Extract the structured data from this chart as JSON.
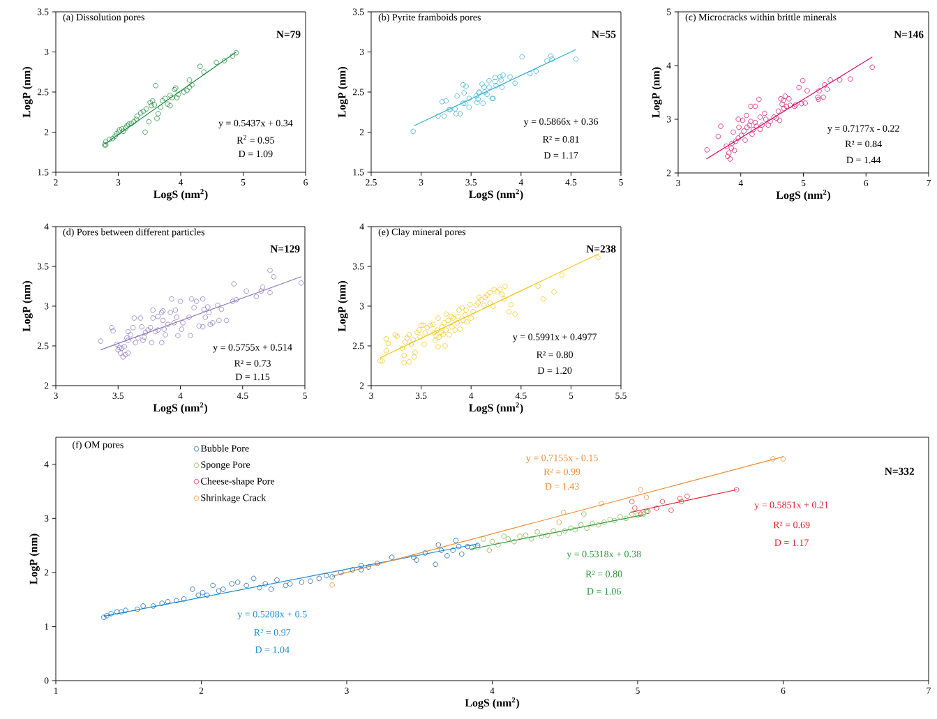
{
  "chart_data": [
    {
      "type": "scatter",
      "title": "(a) Dissolution pores",
      "xlabel": "LogS (nm$^{2}$)",
      "ylabel": "LogP (nm)",
      "marker": "circle",
      "xlim": [
        2,
        6
      ],
      "ylim": [
        1.5,
        3.5
      ],
      "xticks": [
        2,
        3,
        4,
        5,
        6
      ],
      "yticks": [
        1.5,
        2,
        2.5,
        3,
        3.5
      ],
      "series": [
        {
          "color": "#1a8a3c",
          "x": [
            2.78,
            2.8,
            2.8,
            2.86,
            2.91,
            2.95,
            2.97,
            3.01,
            3.02,
            3.06,
            3.08,
            3.12,
            3.14,
            3.17,
            3.21,
            3.25,
            3.29,
            3.3,
            3.36,
            3.4,
            3.43,
            3.49,
            3.45,
            3.53,
            3.51,
            3.55,
            3.58,
            3.6,
            3.62,
            3.64,
            3.68,
            3.71,
            3.75,
            3.79,
            3.83,
            3.83,
            3.86,
            3.9,
            3.92,
            3.94,
            3.96,
            4.05,
            4.1,
            4.14,
            4.14,
            4.18,
            4.31,
            4.37,
            4.57,
            4.7,
            4.83,
            4.89
          ],
          "values": [
            1.84,
            1.84,
            1.88,
            1.91,
            1.92,
            1.95,
            1.98,
            2.0,
            2.03,
            2.04,
            2.01,
            2.05,
            2.08,
            2.1,
            2.11,
            2.13,
            2.16,
            2.2,
            2.24,
            2.26,
            2.0,
            2.13,
            2.29,
            2.33,
            2.37,
            2.39,
            2.34,
            2.58,
            2.17,
            2.23,
            2.31,
            2.39,
            2.42,
            2.35,
            2.46,
            2.33,
            2.43,
            2.53,
            2.55,
            2.43,
            2.47,
            2.5,
            2.52,
            2.65,
            2.56,
            2.59,
            2.82,
            2.75,
            2.87,
            2.89,
            2.95,
            2.99
          ]
        },
        {
          "type": "line",
          "marker": "none",
          "color": "#1a8a3c",
          "x": [
            2.78,
            4.89
          ],
          "values": [
            1.85,
            3.0
          ]
        }
      ],
      "annotations": [
        "y = 0.5437x + 0.34",
        "R$^{2}$ = 0.95",
        "D = 1.09",
        "N=79"
      ]
    },
    {
      "type": "scatter",
      "title": "(b) Pyrite framboids pores",
      "xlabel": "LogS (nm$^{2}$)",
      "ylabel": "LogP (nm)",
      "marker": "circle",
      "xlim": [
        2.5,
        5
      ],
      "ylim": [
        1.5,
        3.5
      ],
      "xticks": [
        2.5,
        3,
        3.5,
        4,
        4.5,
        5
      ],
      "yticks": [
        1.5,
        2,
        2.5,
        3,
        3.5
      ],
      "series": [
        {
          "color": "#3ab0cf",
          "x": [
            2.92,
            3.17,
            3.23,
            3.21,
            3.25,
            3.28,
            3.29,
            3.34,
            3.35,
            3.39,
            3.36,
            3.42,
            3.45,
            3.43,
            3.42,
            3.44,
            3.48,
            3.48,
            3.55,
            3.56,
            3.57,
            3.58,
            3.58,
            3.61,
            3.62,
            3.63,
            3.64,
            3.66,
            3.68,
            3.68,
            3.71,
            3.72,
            3.74,
            3.74,
            3.75,
            3.79,
            3.8,
            3.81,
            3.82,
            3.89,
            3.94,
            4.01,
            4.09,
            4.15,
            4.26,
            4.3,
            4.31,
            4.55
          ],
          "values": [
            2.01,
            2.2,
            2.2,
            2.38,
            2.39,
            2.28,
            2.28,
            2.29,
            2.23,
            2.23,
            2.45,
            2.59,
            2.57,
            2.49,
            2.36,
            2.36,
            2.31,
            2.42,
            2.45,
            2.37,
            2.41,
            2.49,
            2.5,
            2.6,
            2.36,
            2.56,
            2.5,
            2.47,
            2.56,
            2.64,
            2.42,
            2.42,
            2.68,
            2.63,
            2.58,
            2.69,
            2.65,
            2.56,
            2.71,
            2.69,
            2.61,
            2.94,
            2.73,
            2.76,
            2.89,
            2.95,
            2.91,
            2.91
          ]
        },
        {
          "type": "line",
          "marker": "none",
          "color": "#3ab0cf",
          "x": [
            2.93,
            4.55
          ],
          "values": [
            2.08,
            3.03
          ]
        }
      ],
      "annotations": [
        "y = 0.5866x + 0.36",
        "R² = 0.81",
        "D = 1.17",
        "N=55"
      ]
    },
    {
      "type": "scatter",
      "title": "(c) Microcracks within brittle minerals",
      "xlabel": "LogS (nm$^{2}$)",
      "ylabel": "LogP (nm)",
      "marker": "circle",
      "xlim": [
        3,
        7
      ],
      "ylim": [
        2,
        5
      ],
      "xticks": [
        3,
        4,
        5,
        6,
        7
      ],
      "yticks": [
        2,
        3,
        4,
        5
      ],
      "series": [
        {
          "color": "#d6136e",
          "x": [
            3.46,
            3.64,
            3.68,
            3.77,
            3.79,
            3.81,
            3.83,
            3.85,
            3.86,
            3.88,
            3.9,
            3.92,
            3.96,
            3.96,
            3.97,
            4.01,
            4.03,
            4.05,
            4.07,
            4.09,
            4.1,
            4.14,
            4.16,
            4.16,
            4.18,
            4.2,
            4.23,
            4.23,
            4.25,
            4.29,
            4.31,
            4.31,
            4.34,
            4.38,
            4.4,
            4.44,
            4.47,
            4.53,
            4.57,
            4.6,
            4.62,
            4.64,
            4.66,
            4.68,
            4.69,
            4.71,
            4.73,
            4.77,
            4.79,
            4.86,
            4.88,
            4.93,
            4.97,
            4.99,
            5.03,
            5.06,
            5.23,
            5.24,
            5.25,
            5.32,
            5.34,
            5.38,
            5.43,
            5.58,
            5.75,
            6.1
          ],
          "values": [
            2.43,
            2.68,
            2.87,
            2.5,
            2.31,
            2.37,
            2.26,
            2.46,
            2.55,
            2.76,
            2.42,
            2.59,
            2.65,
            3.0,
            2.85,
            2.7,
            2.98,
            2.78,
            2.61,
            3.07,
            2.85,
            2.89,
            3.24,
            2.96,
            2.72,
            2.81,
            3.24,
            2.94,
            2.87,
            3.37,
            3.04,
            2.81,
            2.89,
            3.11,
            3.0,
            2.89,
            2.96,
            3.04,
            3.02,
            3.15,
            2.98,
            3.38,
            3.28,
            3.35,
            3.2,
            3.43,
            3.24,
            3.38,
            3.26,
            3.24,
            3.27,
            3.59,
            3.29,
            3.72,
            3.3,
            3.53,
            3.41,
            3.37,
            3.53,
            3.41,
            3.64,
            3.56,
            3.73,
            3.73,
            3.75,
            3.97
          ]
        },
        {
          "type": "line",
          "marker": "none",
          "color": "#d6136e",
          "x": [
            3.45,
            6.1
          ],
          "values": [
            2.26,
            4.16
          ]
        }
      ],
      "annotations": [
        "y = 0.7177x - 0.22",
        "R² = 0.84",
        "D = 1.44",
        "N=146"
      ]
    },
    {
      "type": "scatter",
      "title": "(d) Pores between different particles",
      "xlabel": "LogS (nm$^{2}$)",
      "ylabel": "LogP (nm)",
      "marker": "circle",
      "xlim": [
        3,
        5
      ],
      "ylim": [
        2,
        4
      ],
      "xticks": [
        3,
        3.5,
        4,
        4.5,
        5
      ],
      "yticks": [
        2,
        2.5,
        3,
        3.5,
        4
      ],
      "series": [
        {
          "color": "#8878bf",
          "x": [
            3.36,
            3.45,
            3.46,
            3.49,
            3.5,
            3.51,
            3.52,
            3.53,
            3.54,
            3.55,
            3.56,
            3.57,
            3.58,
            3.58,
            3.58,
            3.6,
            3.62,
            3.63,
            3.64,
            3.66,
            3.68,
            3.69,
            3.7,
            3.71,
            3.72,
            3.74,
            3.76,
            3.77,
            3.78,
            3.78,
            3.8,
            3.82,
            3.82,
            3.85,
            3.85,
            3.86,
            3.86,
            3.87,
            3.88,
            3.9,
            3.92,
            3.93,
            3.95,
            3.96,
            3.97,
            3.98,
            4.0,
            4.01,
            4.02,
            4.07,
            4.08,
            4.09,
            4.11,
            4.13,
            4.15,
            4.18,
            4.18,
            4.19,
            4.2,
            4.22,
            4.23,
            4.24,
            4.26,
            4.3,
            4.31,
            4.33,
            4.37,
            4.42,
            4.43,
            4.45,
            4.53,
            4.61,
            4.65,
            4.66,
            4.72,
            4.72,
            4.75,
            4.97
          ],
          "values": [
            2.56,
            2.73,
            2.69,
            2.52,
            2.45,
            2.48,
            2.41,
            2.47,
            2.36,
            2.49,
            2.39,
            2.6,
            2.68,
            2.41,
            2.57,
            2.64,
            2.73,
            2.85,
            2.54,
            2.6,
            2.85,
            2.74,
            2.57,
            2.61,
            2.67,
            2.7,
            2.73,
            2.54,
            2.95,
            2.85,
            2.68,
            2.7,
            2.87,
            2.92,
            2.54,
            2.94,
            2.82,
            2.71,
            2.64,
            2.77,
            2.92,
            3.09,
            2.79,
            2.95,
            2.86,
            2.63,
            3.06,
            2.71,
            2.79,
            2.86,
            2.63,
            3.09,
            2.98,
            3.06,
            2.75,
            3.09,
            2.74,
            2.96,
            2.86,
            2.99,
            2.92,
            2.77,
            2.79,
            3.01,
            2.82,
            2.96,
            2.82,
            3.06,
            3.28,
            3.08,
            3.19,
            3.12,
            3.19,
            3.24,
            3.45,
            3.17,
            3.37,
            3.29
          ]
        },
        {
          "type": "line",
          "marker": "none",
          "color": "#8878bf",
          "x": [
            3.36,
            4.97
          ],
          "values": [
            2.45,
            3.37
          ]
        }
      ],
      "annotations": [
        "y = 0.5755x + 0.514",
        "R² = 0.73",
        "D = 1.15",
        "N=129"
      ]
    },
    {
      "type": "scatter",
      "title": "(e) Clay mineral pores",
      "xlabel": "LogS (nm$^{2}$)",
      "ylabel": "LogP (nm)",
      "marker": "circle",
      "xlim": [
        3,
        5.5
      ],
      "ylim": [
        2,
        4
      ],
      "xticks": [
        3,
        3.5,
        4,
        4.5,
        5,
        5.5
      ],
      "yticks": [
        2,
        2.5,
        3,
        3.5,
        4
      ],
      "series": [
        {
          "color": "#f5c518",
          "x": [
            3.09,
            3.11,
            3.15,
            3.17,
            3.15,
            3.24,
            3.26,
            3.31,
            3.33,
            3.33,
            3.34,
            3.36,
            3.38,
            3.38,
            3.4,
            3.42,
            3.43,
            3.44,
            3.46,
            3.48,
            3.49,
            3.5,
            3.52,
            3.53,
            3.54,
            3.56,
            3.59,
            3.62,
            3.63,
            3.64,
            3.65,
            3.66,
            3.67,
            3.67,
            3.68,
            3.7,
            3.71,
            3.72,
            3.73,
            3.74,
            3.75,
            3.75,
            3.77,
            3.78,
            3.8,
            3.81,
            3.82,
            3.84,
            3.86,
            3.87,
            3.88,
            3.89,
            3.91,
            3.92,
            3.94,
            3.95,
            3.96,
            3.99,
            4.0,
            4.02,
            4.05,
            4.07,
            4.08,
            4.1,
            4.13,
            4.14,
            4.16,
            4.19,
            4.19,
            4.22,
            4.23,
            4.26,
            4.29,
            4.31,
            4.33,
            4.34,
            4.38,
            4.4,
            4.44,
            4.67,
            4.72,
            4.83,
            4.91,
            5.27
          ],
          "values": [
            2.31,
            2.31,
            2.59,
            2.53,
            2.44,
            2.64,
            2.62,
            2.47,
            2.38,
            2.29,
            2.55,
            2.6,
            2.3,
            2.64,
            2.52,
            2.58,
            2.36,
            2.42,
            2.67,
            2.7,
            2.61,
            2.76,
            2.76,
            2.52,
            2.66,
            2.73,
            2.76,
            2.77,
            2.67,
            2.57,
            2.63,
            2.7,
            2.49,
            2.85,
            2.61,
            2.67,
            2.74,
            2.64,
            2.79,
            2.5,
            2.9,
            2.7,
            2.82,
            2.64,
            2.87,
            2.74,
            2.85,
            2.7,
            2.79,
            2.87,
            2.95,
            2.71,
            2.98,
            2.82,
            2.89,
            2.95,
            2.8,
            3.02,
            2.85,
            2.93,
            3.01,
            3.04,
            3.11,
            3.08,
            3.01,
            3.11,
            3.14,
            3.04,
            3.17,
            3.0,
            3.21,
            3.18,
            3.21,
            3.15,
            3.09,
            3.25,
            2.93,
            3.02,
            2.9,
            3.25,
            3.09,
            3.18,
            3.39,
            3.61
          ]
        },
        {
          "type": "line",
          "marker": "none",
          "color": "#f5c518",
          "x": [
            3.09,
            5.28
          ],
          "values": [
            2.35,
            3.66
          ]
        }
      ],
      "annotations": [
        "y = 0.5991x + 0.4977",
        "R² = 0.80",
        "D = 1.20",
        "N=238"
      ]
    },
    {
      "type": "scatter",
      "title": "(f) OM pores",
      "xlabel": "LogS (nm$^{2}$)",
      "ylabel": "LogP (nm)",
      "marker": "circle",
      "legend": "top left",
      "xlim": [
        1,
        7
      ],
      "ylim": [
        0,
        4.5
      ],
      "xticks": [
        1,
        2,
        3,
        4,
        5,
        6,
        7
      ],
      "yticks": [
        0,
        1,
        2,
        3,
        4
      ],
      "series": [
        {
          "name": "Bubble  Pore",
          "color": "#0b5fb0",
          "x": [
            1.33,
            1.35,
            1.38,
            1.42,
            1.45,
            1.48,
            1.56,
            1.6,
            1.67,
            1.73,
            1.77,
            1.83,
            1.88,
            1.94,
            1.98,
            2.01,
            2.04,
            2.08,
            2.12,
            2.15,
            2.21,
            2.25,
            2.31,
            2.36,
            2.4,
            2.44,
            2.48,
            2.52,
            2.58,
            2.61,
            2.69,
            2.75,
            2.81,
            2.86,
            2.9,
            2.96,
            3.04,
            3.1,
            3.1,
            3.15,
            3.21,
            3.31,
            3.46,
            3.48,
            3.54,
            3.61,
            3.63,
            3.65,
            3.69,
            3.73,
            3.75,
            3.77,
            3.79,
            3.83,
            3.86,
            3.9
          ],
          "values": [
            1.17,
            1.2,
            1.24,
            1.27,
            1.27,
            1.3,
            1.32,
            1.38,
            1.38,
            1.43,
            1.46,
            1.48,
            1.51,
            1.69,
            1.58,
            1.63,
            1.58,
            1.76,
            1.66,
            1.69,
            1.79,
            1.82,
            1.76,
            1.89,
            1.72,
            1.79,
            1.69,
            1.86,
            1.76,
            1.79,
            1.82,
            1.84,
            1.89,
            1.94,
            1.92,
            2.0,
            2.05,
            2.05,
            2.13,
            2.1,
            2.17,
            2.28,
            2.28,
            2.23,
            2.36,
            2.15,
            2.51,
            2.41,
            2.31,
            2.41,
            2.59,
            2.48,
            2.34,
            2.48,
            2.46,
            2.5
          ]
        },
        {
          "name": "Sponge Pore",
          "color": "#78b443",
          "x": [
            3.9,
            3.94,
            3.98,
            4.0,
            4.04,
            4.08,
            4.11,
            4.15,
            4.19,
            4.23,
            4.27,
            4.31,
            4.34,
            4.38,
            4.42,
            4.46,
            4.5,
            4.54,
            4.57,
            4.61,
            4.63,
            4.65,
            4.69,
            4.73,
            4.77,
            4.81,
            4.84,
            4.88,
            4.92,
            4.96,
            5.0,
            5.04,
            5.06
          ],
          "values": [
            2.46,
            2.62,
            2.41,
            2.57,
            2.51,
            2.67,
            2.62,
            2.57,
            2.67,
            2.69,
            2.62,
            2.75,
            2.67,
            2.69,
            2.77,
            2.72,
            2.77,
            2.82,
            2.79,
            2.88,
            3.08,
            2.82,
            2.9,
            2.88,
            2.93,
            2.98,
            2.96,
            3.03,
            3.0,
            3.08,
            3.06,
            3.08,
            3.13
          ]
        },
        {
          "name": "Cheese-shape Pore",
          "color": "#e0212b",
          "x": [
            4.96,
            4.98,
            5.02,
            5.07,
            5.13,
            5.17,
            5.23,
            5.29,
            5.3,
            5.34,
            5.68
          ],
          "values": [
            3.31,
            3.19,
            3.08,
            3.13,
            3.19,
            3.31,
            3.15,
            3.37,
            3.31,
            3.41,
            3.53
          ]
        },
        {
          "name": "Shrinkage Crack",
          "color": "#f28a30",
          "x": [
            2.9,
            4.46,
            4.49,
            4.75,
            5.02,
            5.06,
            5.93,
            6.0
          ],
          "values": [
            1.77,
            2.93,
            3.11,
            3.27,
            3.53,
            3.39,
            4.1,
            4.1
          ]
        },
        {
          "type": "line",
          "marker": "none",
          "color": "#1a8fd8",
          "x": [
            1.33,
            3.9
          ],
          "values": [
            1.19,
            2.53
          ]
        },
        {
          "type": "line",
          "marker": "none",
          "color": "#2a9a3c",
          "x": [
            3.85,
            5.05
          ],
          "values": [
            2.43,
            3.07
          ]
        },
        {
          "type": "line",
          "marker": "none",
          "color": "#e0212b",
          "x": [
            4.95,
            5.68
          ],
          "values": [
            3.11,
            3.53
          ]
        },
        {
          "type": "line",
          "marker": "none",
          "color": "#f28a30",
          "x": [
            2.9,
            6.0
          ],
          "values": [
            1.93,
            4.14
          ]
        }
      ],
      "annotations": [
        "y = 0.5208x + 0.5",
        "R² = 0.97",
        "D = 1.04",
        "y = 0.5318x + 0.38",
        "R² = 0.80",
        "D = 1.06",
        "y = 0.5851x + 0.21",
        "R² = 0.69",
        "D = 1.17",
        "y = 0.7155x - 0.15",
        "R² = 0.99",
        "D = 1.43",
        "N=332"
      ]
    }
  ]
}
